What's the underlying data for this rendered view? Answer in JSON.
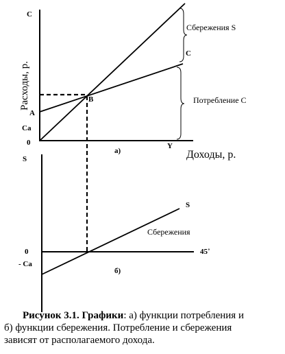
{
  "panel_a": {
    "y_axis_label": "C",
    "axis_title_y": "Расходы, р.",
    "axis_title_x": "Доходы, р.",
    "x_axis_label": "Y",
    "origin": "0",
    "point_a": "A",
    "intercept": "Ca",
    "point_b": "B",
    "line_c": "C",
    "savings_brace": "Сбережения S",
    "consumption_brace": "Потребление C",
    "panel_label": "а)"
  },
  "panel_b": {
    "y_axis_label": "S",
    "line_s": "S",
    "line_label": "Сбережения",
    "origin": "0",
    "intercept": "- Ca",
    "angle_label": "45˚",
    "panel_label": "б)"
  },
  "caption": {
    "bold": "Рисунок 3.1. Графики",
    "lines": [
      ": а) функции потребления и",
      "б) функции сбережения. Потребление и сбережения",
      "зависят от располагаемого дохода."
    ]
  }
}
